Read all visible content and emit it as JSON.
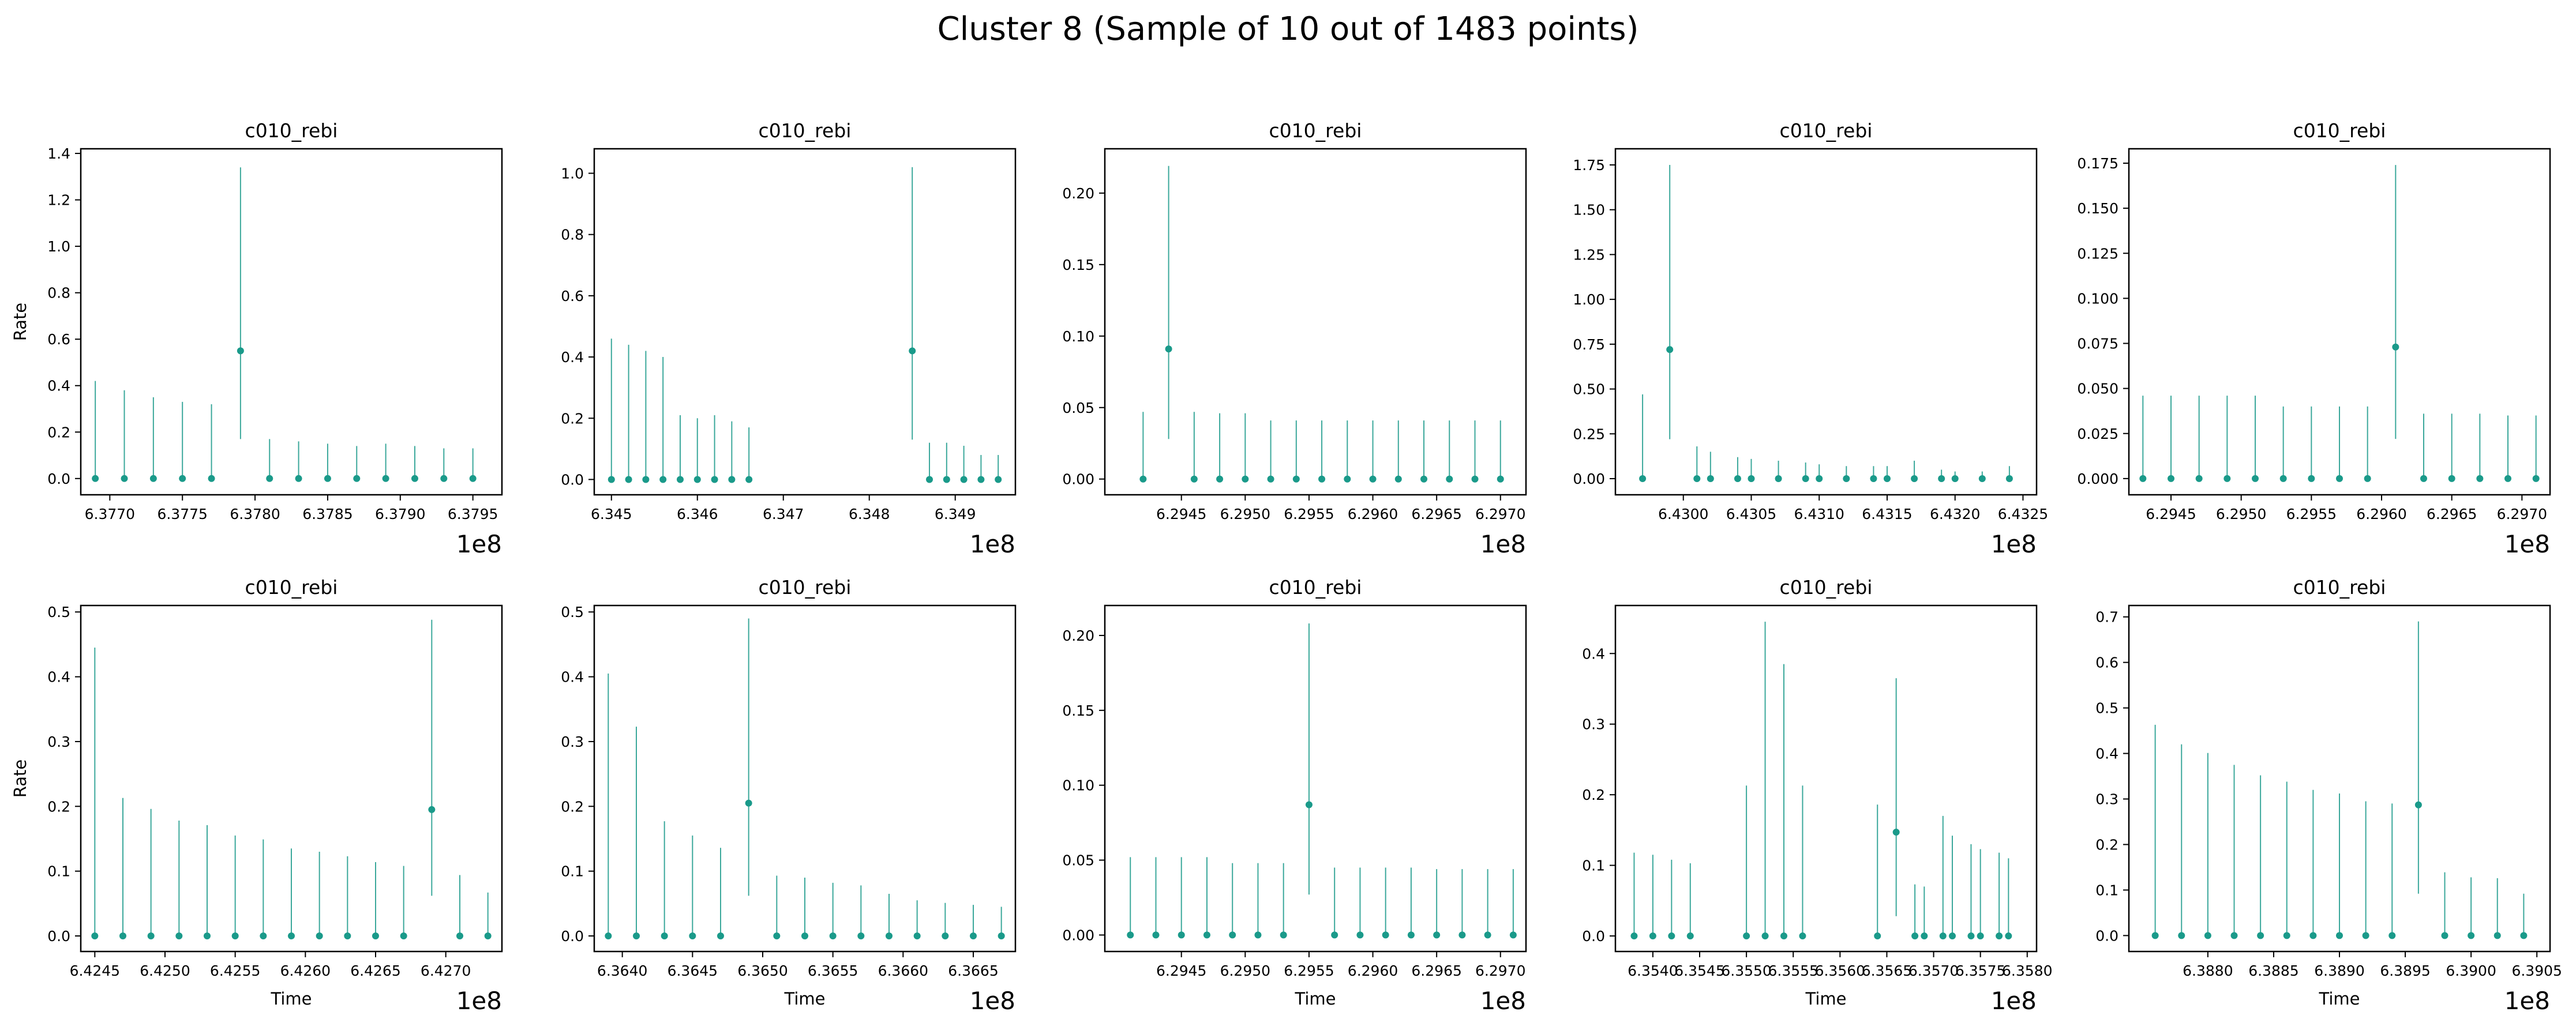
{
  "figure": {
    "title": "Cluster 8 (Sample of 10 out of 1483 points)",
    "marker_color": "#1a9a8a"
  },
  "chart_data": [
    {
      "type": "scatter",
      "title": "c010_rebi",
      "xlabel": "",
      "ylabel": "Rate",
      "x_multiplier": "1e8",
      "xlim": [
        6.3768,
        6.3797
      ],
      "ylim": [
        -0.07,
        1.42
      ],
      "xticks": [
        "6.3770",
        "6.3775",
        "6.3780",
        "6.3785",
        "6.3790",
        "6.3795"
      ],
      "yticks": [
        "0.0",
        "0.2",
        "0.4",
        "0.6",
        "0.8",
        "1.0",
        "1.2",
        "1.4"
      ],
      "x": [
        6.3769,
        6.3771,
        6.3773,
        6.3775,
        6.3777,
        6.3779,
        6.3781,
        6.3783,
        6.3785,
        6.3787,
        6.3789,
        6.3791,
        6.3793,
        6.3795
      ],
      "y": [
        0,
        0,
        0,
        0,
        0,
        0.55,
        0,
        0,
        0,
        0,
        0,
        0,
        0,
        0
      ],
      "y_upper": [
        0.42,
        0.38,
        0.35,
        0.33,
        0.32,
        1.34,
        0.17,
        0.16,
        0.15,
        0.14,
        0.15,
        0.14,
        0.13,
        0.13
      ],
      "y_lower": [
        0,
        0,
        0,
        0,
        0,
        0.17,
        0,
        0,
        0,
        0,
        0,
        0,
        0,
        0
      ]
    },
    {
      "type": "scatter",
      "title": "c010_rebi",
      "xlabel": "",
      "ylabel": "",
      "x_multiplier": "1e8",
      "xlim": [
        6.3448,
        6.3497
      ],
      "ylim": [
        -0.05,
        1.08
      ],
      "xticks": [
        "6.345",
        "6.346",
        "6.347",
        "6.348",
        "6.349"
      ],
      "yticks": [
        "0.0",
        "0.2",
        "0.4",
        "0.6",
        "0.8",
        "1.0"
      ],
      "x": [
        6.345,
        6.3452,
        6.3454,
        6.3456,
        6.3458,
        6.346,
        6.3462,
        6.3464,
        6.3466,
        6.3485,
        6.3487,
        6.3489,
        6.3491,
        6.3493,
        6.3495
      ],
      "y": [
        0,
        0,
        0,
        0,
        0,
        0,
        0,
        0,
        0,
        0.42,
        0,
        0,
        0,
        0,
        0
      ],
      "y_upper": [
        0.46,
        0.44,
        0.42,
        0.4,
        0.21,
        0.2,
        0.21,
        0.19,
        0.17,
        1.02,
        0.12,
        0.12,
        0.11,
        0.08,
        0.08
      ],
      "y_lower": [
        0,
        0,
        0,
        0,
        0,
        0,
        0,
        0,
        0,
        0.13,
        0,
        0,
        0,
        0,
        0
      ]
    },
    {
      "type": "scatter",
      "title": "c010_rebi",
      "xlabel": "",
      "ylabel": "",
      "x_multiplier": "1e8",
      "xlim": [
        6.2939,
        6.2972
      ],
      "ylim": [
        -0.011,
        0.231
      ],
      "xticks": [
        "6.2945",
        "6.2950",
        "6.2955",
        "6.2960",
        "6.2965",
        "6.2970"
      ],
      "yticks": [
        "0.00",
        "0.05",
        "0.10",
        "0.15",
        "0.20"
      ],
      "x": [
        6.2942,
        6.2944,
        6.2946,
        6.2948,
        6.295,
        6.2952,
        6.2954,
        6.2956,
        6.2958,
        6.296,
        6.2962,
        6.2964,
        6.2966,
        6.2968,
        6.297
      ],
      "y": [
        0,
        0.091,
        0,
        0,
        0,
        0,
        0,
        0,
        0,
        0,
        0,
        0,
        0,
        0,
        0
      ],
      "y_upper": [
        0.047,
        0.219,
        0.047,
        0.046,
        0.046,
        0.041,
        0.041,
        0.041,
        0.041,
        0.041,
        0.041,
        0.041,
        0.041,
        0.041,
        0.041
      ],
      "y_lower": [
        0,
        0.028,
        0,
        0,
        0,
        0,
        0,
        0,
        0,
        0,
        0,
        0,
        0,
        0,
        0
      ]
    },
    {
      "type": "scatter",
      "title": "c010_rebi",
      "xlabel": "",
      "ylabel": "",
      "x_multiplier": "1e8",
      "xlim": [
        6.4295,
        6.4326
      ],
      "ylim": [
        -0.09,
        1.84
      ],
      "xticks": [
        "6.4300",
        "6.4305",
        "6.4310",
        "6.4315",
        "6.4320",
        "6.4325"
      ],
      "yticks": [
        "0.00",
        "0.25",
        "0.50",
        "0.75",
        "1.00",
        "1.25",
        "1.50",
        "1.75"
      ],
      "x": [
        6.4297,
        6.4299,
        6.4301,
        6.4302,
        6.4304,
        6.4305,
        6.4307,
        6.4309,
        6.431,
        6.4312,
        6.4314,
        6.4315,
        6.4317,
        6.4319,
        6.432,
        6.4322,
        6.4324
      ],
      "y": [
        0,
        0.72,
        0,
        0,
        0,
        0,
        0,
        0,
        0,
        0,
        0,
        0,
        0,
        0,
        0,
        0,
        0
      ],
      "y_upper": [
        0.47,
        1.75,
        0.18,
        0.15,
        0.12,
        0.11,
        0.1,
        0.09,
        0.08,
        0.07,
        0.07,
        0.07,
        0.1,
        0.05,
        0.04,
        0.04,
        0.07
      ],
      "y_lower": [
        0,
        0.22,
        0,
        0,
        0,
        0,
        0,
        0,
        0,
        0,
        0,
        0,
        0,
        0,
        0,
        0,
        0
      ]
    },
    {
      "type": "scatter",
      "title": "c010_rebi",
      "xlabel": "",
      "ylabel": "",
      "x_multiplier": "1e8",
      "xlim": [
        6.2942,
        6.2972
      ],
      "ylim": [
        -0.009,
        0.183
      ],
      "xticks": [
        "6.2945",
        "6.2950",
        "6.2955",
        "6.2960",
        "6.2965",
        "6.2970"
      ],
      "yticks": [
        "0.000",
        "0.025",
        "0.050",
        "0.075",
        "0.100",
        "0.125",
        "0.150",
        "0.175"
      ],
      "x": [
        6.2943,
        6.2945,
        6.2947,
        6.2949,
        6.2951,
        6.2953,
        6.2955,
        6.2957,
        6.2959,
        6.2961,
        6.2963,
        6.2965,
        6.2967,
        6.2969,
        6.2971
      ],
      "y": [
        0,
        0,
        0,
        0,
        0,
        0,
        0,
        0,
        0,
        0.073,
        0,
        0,
        0,
        0,
        0
      ],
      "y_upper": [
        0.046,
        0.046,
        0.046,
        0.046,
        0.046,
        0.04,
        0.04,
        0.04,
        0.04,
        0.174,
        0.036,
        0.036,
        0.036,
        0.035,
        0.035
      ],
      "y_lower": [
        0,
        0,
        0,
        0,
        0,
        0,
        0,
        0,
        0,
        0.022,
        0,
        0,
        0,
        0,
        0
      ]
    },
    {
      "type": "scatter",
      "title": "c010_rebi",
      "xlabel": "Time",
      "ylabel": "Rate",
      "x_multiplier": "1e8",
      "xlim": [
        6.4244,
        6.4274
      ],
      "ylim": [
        -0.024,
        0.51
      ],
      "xticks": [
        "6.4245",
        "6.4250",
        "6.4255",
        "6.4260",
        "6.4265",
        "6.4270"
      ],
      "yticks": [
        "0.0",
        "0.1",
        "0.2",
        "0.3",
        "0.4",
        "0.5"
      ],
      "x": [
        6.4245,
        6.4247,
        6.4249,
        6.4251,
        6.4253,
        6.4255,
        6.4257,
        6.4259,
        6.4261,
        6.4263,
        6.4265,
        6.4267,
        6.4269,
        6.4271,
        6.4273
      ],
      "y": [
        0,
        0,
        0,
        0,
        0,
        0,
        0,
        0,
        0,
        0,
        0,
        0,
        0.195,
        0,
        0
      ],
      "y_upper": [
        0.445,
        0.213,
        0.196,
        0.178,
        0.171,
        0.155,
        0.149,
        0.135,
        0.13,
        0.123,
        0.114,
        0.108,
        0.488,
        0.094,
        0.067
      ],
      "y_lower": [
        0,
        0,
        0,
        0,
        0,
        0,
        0,
        0,
        0,
        0,
        0,
        0,
        0.062,
        0,
        0
      ]
    },
    {
      "type": "scatter",
      "title": "c010_rebi",
      "xlabel": "Time",
      "ylabel": "",
      "x_multiplier": "1e8",
      "xlim": [
        6.3638,
        6.3668
      ],
      "ylim": [
        -0.024,
        0.51
      ],
      "xticks": [
        "6.3640",
        "6.3645",
        "6.3650",
        "6.3655",
        "6.3660",
        "6.3665"
      ],
      "yticks": [
        "0.0",
        "0.1",
        "0.2",
        "0.3",
        "0.4",
        "0.5"
      ],
      "x": [
        6.3639,
        6.3641,
        6.3643,
        6.3645,
        6.3647,
        6.3649,
        6.3651,
        6.3653,
        6.3655,
        6.3657,
        6.3659,
        6.3661,
        6.3663,
        6.3665,
        6.3667
      ],
      "y": [
        0,
        0,
        0,
        0,
        0,
        0.205,
        0,
        0,
        0,
        0,
        0,
        0,
        0,
        0,
        0
      ],
      "y_upper": [
        0.405,
        0.323,
        0.177,
        0.155,
        0.136,
        0.49,
        0.093,
        0.09,
        0.082,
        0.078,
        0.065,
        0.055,
        0.051,
        0.048,
        0.045
      ],
      "y_lower": [
        0,
        0,
        0,
        0,
        0,
        0.062,
        0,
        0,
        0,
        0,
        0,
        0,
        0,
        0,
        0
      ]
    },
    {
      "type": "scatter",
      "title": "c010_rebi",
      "xlabel": "Time",
      "ylabel": "",
      "x_multiplier": "1e8",
      "xlim": [
        6.2939,
        6.2972
      ],
      "ylim": [
        -0.011,
        0.22
      ],
      "xticks": [
        "6.2945",
        "6.2950",
        "6.2955",
        "6.2960",
        "6.2965",
        "6.2970"
      ],
      "yticks": [
        "0.00",
        "0.05",
        "0.10",
        "0.15",
        "0.20"
      ],
      "x": [
        6.2941,
        6.2943,
        6.2945,
        6.2947,
        6.2949,
        6.2951,
        6.2953,
        6.2955,
        6.2957,
        6.2959,
        6.2961,
        6.2963,
        6.2965,
        6.2967,
        6.2969,
        6.2971
      ],
      "y": [
        0,
        0,
        0,
        0,
        0,
        0,
        0,
        0.087,
        0,
        0,
        0,
        0,
        0,
        0,
        0,
        0
      ],
      "y_upper": [
        0.052,
        0.052,
        0.052,
        0.052,
        0.048,
        0.048,
        0.048,
        0.208,
        0.045,
        0.045,
        0.045,
        0.045,
        0.044,
        0.044,
        0.044,
        0.044
      ],
      "y_lower": [
        0,
        0,
        0,
        0,
        0,
        0,
        0,
        0.027,
        0,
        0,
        0,
        0,
        0,
        0,
        0,
        0
      ]
    },
    {
      "type": "scatter",
      "title": "c010_rebi",
      "xlabel": "Time",
      "ylabel": "",
      "x_multiplier": "1e8",
      "xlim": [
        6.3536,
        6.3581
      ],
      "ylim": [
        -0.022,
        0.468
      ],
      "xticks": [
        "6.3540",
        "6.3545",
        "6.3550",
        "6.3555",
        "6.3560",
        "6.3565",
        "6.3570",
        "6.3575",
        "6.3580"
      ],
      "yticks": [
        "0.0",
        "0.1",
        "0.2",
        "0.3",
        "0.4"
      ],
      "x": [
        6.3538,
        6.354,
        6.3542,
        6.3544,
        6.355,
        6.3552,
        6.3554,
        6.3556,
        6.3564,
        6.3566,
        6.3568,
        6.3569,
        6.3571,
        6.3572,
        6.3574,
        6.3575,
        6.3577,
        6.3578
      ],
      "y": [
        0,
        0,
        0,
        0,
        0,
        0,
        0,
        0,
        0,
        0.147,
        0,
        0,
        0,
        0,
        0,
        0,
        0,
        0
      ],
      "y_upper": [
        0.118,
        0.115,
        0.108,
        0.103,
        0.213,
        0.445,
        0.385,
        0.213,
        0.186,
        0.365,
        0.073,
        0.07,
        0.17,
        0.142,
        0.13,
        0.123,
        0.118,
        0.11
      ],
      "y_lower": [
        0,
        0,
        0,
        0,
        0,
        0,
        0,
        0,
        0,
        0.028,
        0,
        0,
        0,
        0,
        0,
        0,
        0,
        0
      ]
    },
    {
      "type": "scatter",
      "title": "c010_rebi",
      "xlabel": "Time",
      "ylabel": "",
      "x_multiplier": "1e8",
      "xlim": [
        6.3874,
        6.3906
      ],
      "ylim": [
        -0.035,
        0.725
      ],
      "xticks": [
        "6.3880",
        "6.3885",
        "6.3890",
        "6.3895",
        "6.3900",
        "6.3905"
      ],
      "yticks": [
        "0.0",
        "0.1",
        "0.2",
        "0.3",
        "0.4",
        "0.5",
        "0.6",
        "0.7"
      ],
      "x": [
        6.3876,
        6.3878,
        6.388,
        6.3882,
        6.3884,
        6.3886,
        6.3888,
        6.389,
        6.3892,
        6.3894,
        6.3896,
        6.3898,
        6.39,
        6.3902,
        6.3904
      ],
      "y": [
        0,
        0,
        0,
        0,
        0,
        0,
        0,
        0,
        0,
        0,
        0.287,
        0,
        0,
        0,
        0
      ],
      "y_upper": [
        0.463,
        0.42,
        0.401,
        0.375,
        0.352,
        0.338,
        0.32,
        0.312,
        0.295,
        0.29,
        0.69,
        0.139,
        0.128,
        0.126,
        0.092
      ],
      "y_lower": [
        0,
        0,
        0,
        0,
        0,
        0,
        0,
        0,
        0,
        0,
        0.092,
        0,
        0,
        0,
        0
      ]
    }
  ]
}
